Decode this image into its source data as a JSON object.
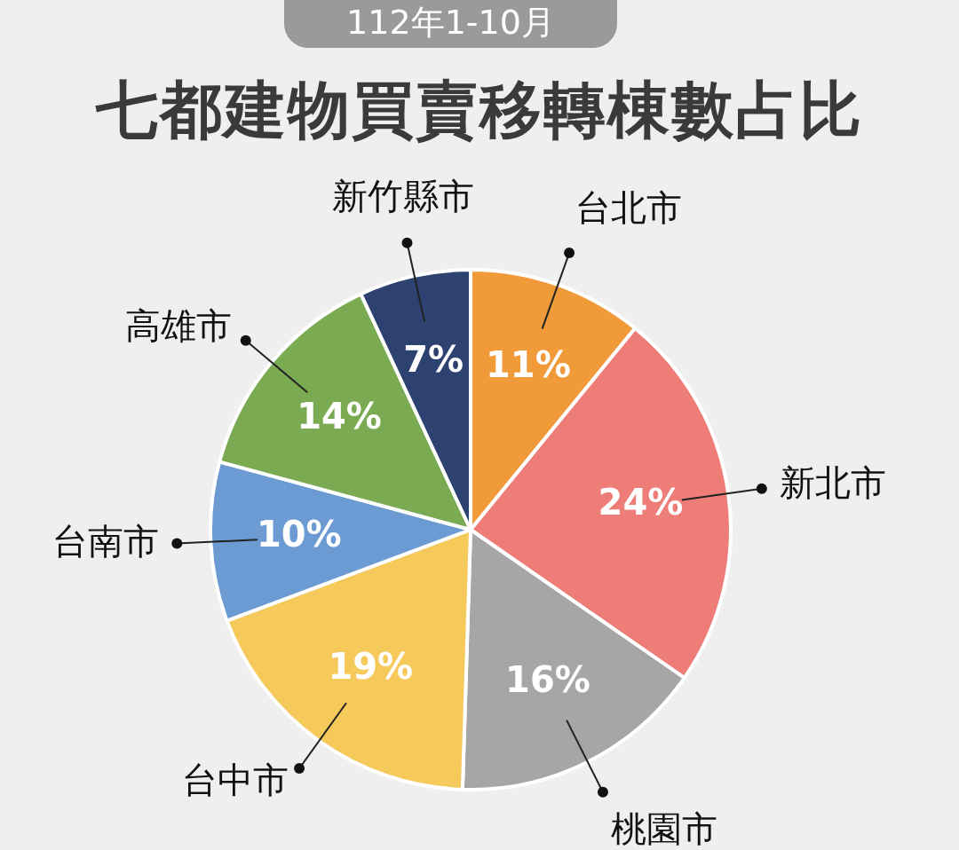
{
  "chart_data": {
    "type": "pie",
    "subtitle": "112年1-10月",
    "title": "七都建物買賣移轉棟數占比",
    "categories": [
      "台北市",
      "新北市",
      "桃園市",
      "台中市",
      "台南市",
      "高雄市",
      "新竹縣市"
    ],
    "values": [
      11,
      24,
      16,
      19,
      10,
      14,
      7
    ],
    "colors": [
      "#f09a3a",
      "#ee7d78",
      "#a6a6a6",
      "#f5c95a",
      "#6b9bd2",
      "#7aaa52",
      "#2e4272"
    ],
    "value_labels": [
      "11%",
      "24%",
      "16%",
      "19%",
      "10%",
      "14%",
      "7%"
    ],
    "legend": false
  }
}
